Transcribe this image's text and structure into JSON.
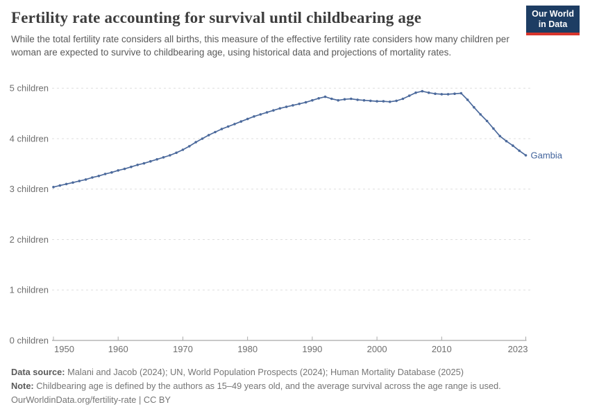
{
  "header": {
    "title": "Fertility rate accounting for survival until childbearing age",
    "subtitle": "While the total fertility rate considers all births, this measure of the effective fertility rate considers how many children per woman are expected to survive to childbearing age, using historical data and projections of mortality rates.",
    "logo": {
      "line1": "Our World",
      "line2": "in Data"
    }
  },
  "chart_data": {
    "type": "line",
    "title": "Fertility rate accounting for survival until childbearing age",
    "entity": "Gambia",
    "series_end_label": "Gambia",
    "unit": "children",
    "x": [
      1950,
      1951,
      1952,
      1953,
      1954,
      1955,
      1956,
      1957,
      1958,
      1959,
      1960,
      1961,
      1962,
      1963,
      1964,
      1965,
      1966,
      1967,
      1968,
      1969,
      1970,
      1971,
      1972,
      1973,
      1974,
      1975,
      1976,
      1977,
      1978,
      1979,
      1980,
      1981,
      1982,
      1983,
      1984,
      1985,
      1986,
      1987,
      1988,
      1989,
      1990,
      1991,
      1992,
      1993,
      1994,
      1995,
      1996,
      1997,
      1998,
      1999,
      2000,
      2001,
      2002,
      2003,
      2004,
      2005,
      2006,
      2007,
      2008,
      2009,
      2010,
      2011,
      2012,
      2013,
      2014,
      2015,
      2016,
      2017,
      2018,
      2019,
      2020,
      2021,
      2022,
      2023
    ],
    "series": [
      {
        "name": "Gambia",
        "color": "#4c6a9c",
        "values": [
          3.04,
          3.07,
          3.1,
          3.13,
          3.16,
          3.19,
          3.23,
          3.26,
          3.3,
          3.33,
          3.37,
          3.4,
          3.44,
          3.48,
          3.51,
          3.55,
          3.59,
          3.63,
          3.67,
          3.72,
          3.78,
          3.85,
          3.93,
          4.0,
          4.07,
          4.13,
          4.19,
          4.24,
          4.29,
          4.34,
          4.39,
          4.44,
          4.48,
          4.52,
          4.56,
          4.6,
          4.63,
          4.66,
          4.69,
          4.72,
          4.76,
          4.8,
          4.83,
          4.79,
          4.76,
          4.78,
          4.79,
          4.77,
          4.76,
          4.75,
          4.74,
          4.74,
          4.73,
          4.75,
          4.79,
          4.85,
          4.91,
          4.94,
          4.91,
          4.89,
          4.88,
          4.88,
          4.89,
          4.9,
          4.77,
          4.62,
          4.48,
          4.35,
          4.2,
          4.05,
          3.95,
          3.86,
          3.76,
          3.67
        ]
      }
    ],
    "xlim": [
      1950,
      2023
    ],
    "ylim": [
      0,
      5
    ],
    "xticks": [
      1950,
      1960,
      1970,
      1980,
      1990,
      2000,
      2010,
      2023
    ],
    "yticks": [
      0,
      1,
      2,
      3,
      4,
      5
    ],
    "ytick_labels": [
      "0 children",
      "1 children",
      "2 children",
      "3 children",
      "4 children",
      "5 children"
    ],
    "grid": "horizontal-dashed",
    "legend_position": "end-of-line",
    "colors": {
      "line": "#4c6a9c",
      "marker": "#4c6a9c",
      "gridline": "#dddddd",
      "axis": "#a8a8a8",
      "tick_label": "#6e6e6e",
      "series_label": "#41639c"
    }
  },
  "footer": {
    "data_source_label": "Data source:",
    "data_source_text": "Malani and Jacob (2024); UN, World Population Prospects (2024); Human Mortality Database (2025)",
    "note_label": "Note:",
    "note_text": "Childbearing age is defined by the authors as 15–49 years old, and the average survival across the age range is used.",
    "license": "OurWorldinData.org/fertility-rate | CC BY"
  }
}
